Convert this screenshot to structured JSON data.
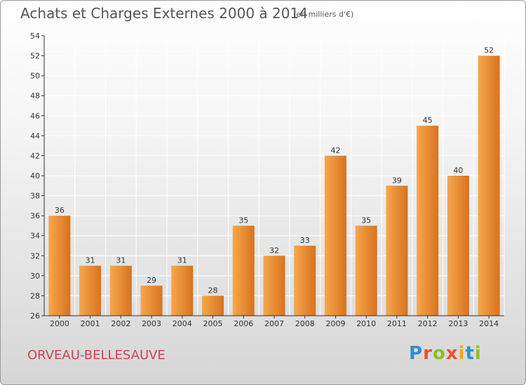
{
  "header": {
    "title": "Achats et Charges Externes 2000 à 2014",
    "subtitle": "(en milliers d'€)"
  },
  "footer": {
    "commune": "ORVEAU-BELLESAUVE",
    "logo_letters": [
      "P",
      "r",
      "o",
      "x",
      "i",
      "t",
      "i"
    ],
    "logo_colors": [
      "#2e8fd0",
      "#e8542c",
      "#8cbf2a",
      "#e8542c",
      "#f2a81d",
      "#2e8fd0",
      "#8cbf2a"
    ]
  },
  "colors": {
    "bar_light": "#f6a74d",
    "bar_dark": "#d8731e",
    "grid": "#ffffff",
    "axis": "#333333"
  },
  "chart_data": {
    "type": "bar",
    "title": "Achats et Charges Externes 2000 à 2014",
    "subtitle": "(en milliers d'€)",
    "xlabel": "",
    "ylabel": "",
    "categories": [
      "2000",
      "2001",
      "2002",
      "2003",
      "2004",
      "2005",
      "2006",
      "2007",
      "2008",
      "2009",
      "2010",
      "2011",
      "2012",
      "2013",
      "2014"
    ],
    "values": [
      36,
      31,
      31,
      29,
      31,
      28,
      35,
      32,
      33,
      42,
      35,
      39,
      45,
      40,
      52
    ],
    "ylim": [
      26,
      54
    ],
    "yticks": [
      26,
      28,
      30,
      32,
      34,
      36,
      38,
      40,
      42,
      44,
      46,
      48,
      50,
      52,
      54
    ],
    "grid": true
  }
}
